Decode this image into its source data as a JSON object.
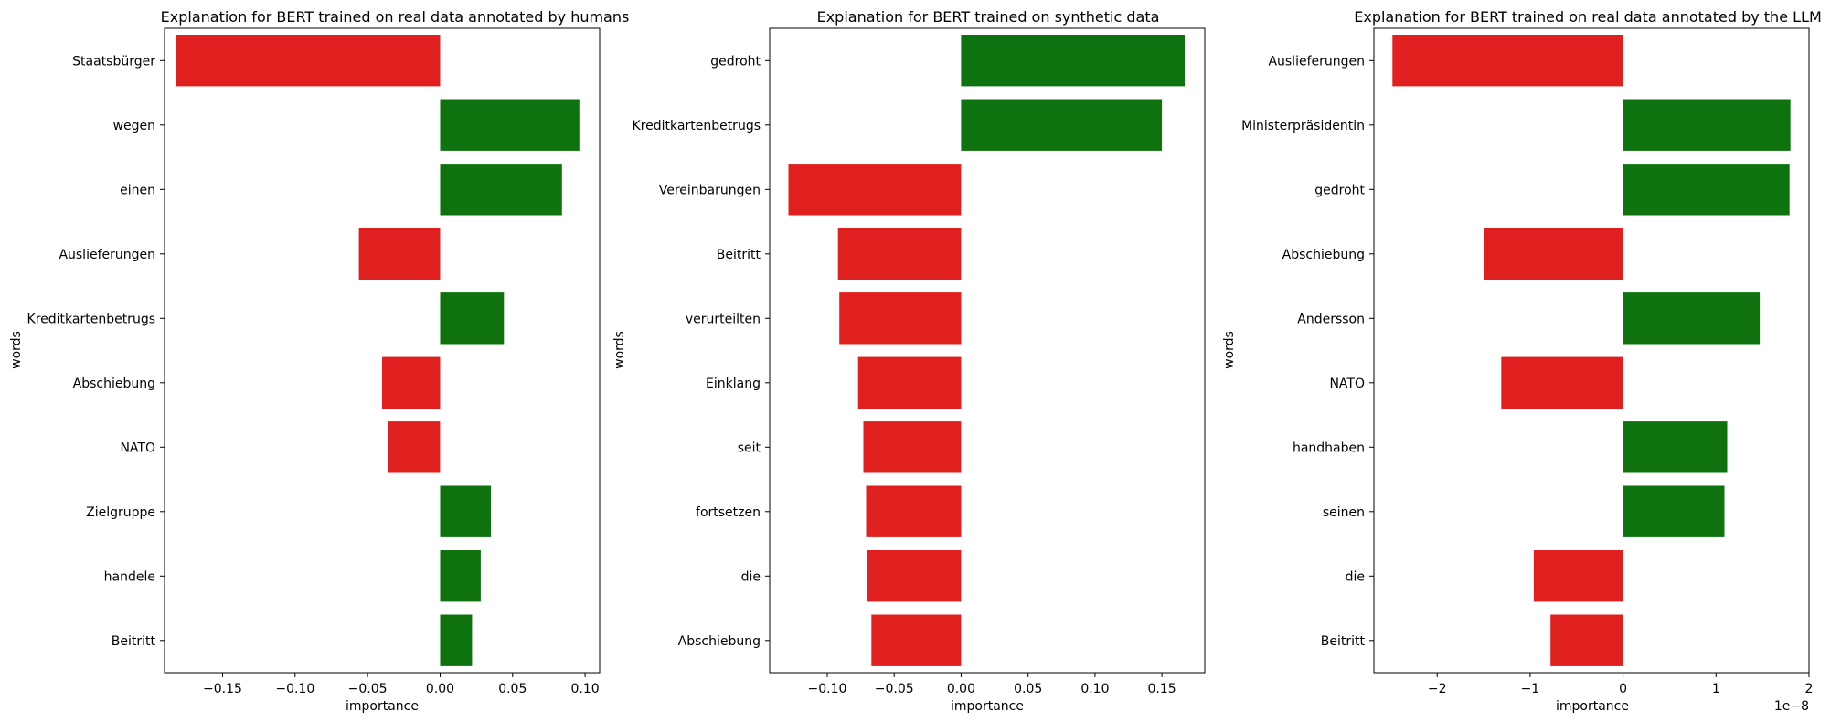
{
  "chart_data": [
    {
      "type": "bar",
      "orientation": "horizontal",
      "title": "Explanation for BERT trained on real data annotated by humans",
      "xlabel": "importance",
      "ylabel": "words",
      "xlim": [
        -0.19,
        0.11
      ],
      "xticks": [
        -0.15,
        -0.1,
        -0.05,
        0.0,
        0.05,
        0.1
      ],
      "xtick_labels": [
        "−0.15",
        "−0.10",
        "−0.05",
        "0.00",
        "0.05",
        "0.10"
      ],
      "offset_text": "",
      "grid": false,
      "categories": [
        "Staatsbürger",
        "wegen",
        "einen",
        "Auslieferungen",
        "Kreditkartenbetrugs",
        "Abschiebung",
        "NATO",
        "Zielgruppe",
        "handele",
        "Beitritt"
      ],
      "values": [
        -0.182,
        0.096,
        0.084,
        -0.056,
        0.044,
        -0.04,
        -0.036,
        0.035,
        0.028,
        0.022
      ]
    },
    {
      "type": "bar",
      "orientation": "horizontal",
      "title": "Explanation for BERT trained on synthetic data",
      "xlabel": "importance",
      "ylabel": "words",
      "xlim": [
        -0.143,
        0.182
      ],
      "xticks": [
        -0.1,
        -0.05,
        0.0,
        0.05,
        0.1,
        0.15
      ],
      "xtick_labels": [
        "−0.10",
        "−0.05",
        "0.00",
        "0.05",
        "0.10",
        "0.15"
      ],
      "offset_text": "",
      "grid": false,
      "categories": [
        "gedroht",
        "Kreditkartenbetrugs",
        "Vereinbarungen",
        "Beitritt",
        "verurteilten",
        "Einklang",
        "seit",
        "fortsetzen",
        "die",
        "Abschiebung"
      ],
      "values": [
        0.167,
        0.15,
        -0.129,
        -0.092,
        -0.091,
        -0.077,
        -0.073,
        -0.071,
        -0.07,
        -0.067
      ]
    },
    {
      "type": "bar",
      "orientation": "horizontal",
      "title": "Explanation for BERT trained on real data annotated by the LLM",
      "xlabel": "importance",
      "ylabel": "words",
      "xlim": [
        -2.68,
        2.0
      ],
      "xticks": [
        -2,
        -1,
        0,
        1,
        2
      ],
      "xtick_labels": [
        "−2",
        "−1",
        "0",
        "1",
        "2"
      ],
      "offset_text": "1e−8",
      "grid": false,
      "categories": [
        "Auslieferungen",
        "Ministerpräsidentin",
        "gedroht",
        "Abschiebung",
        "Andersson",
        "NATO",
        "handhaben",
        "seinen",
        "die",
        "Beitritt"
      ],
      "values": [
        -2.48,
        1.8,
        1.79,
        -1.5,
        1.47,
        -1.31,
        1.12,
        1.09,
        -0.96,
        -0.78
      ]
    }
  ],
  "colors": {
    "positive": "#0e730e",
    "negative": "#e01f1f",
    "axis": "#000000",
    "background": "#ffffff"
  }
}
